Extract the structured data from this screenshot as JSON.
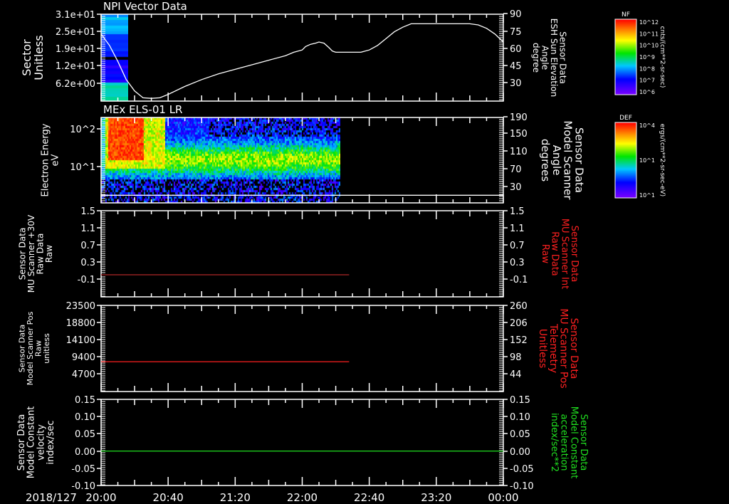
{
  "date_label": "2018/127",
  "x_axis": {
    "tick_labels": [
      "20:00",
      "20:40",
      "21:20",
      "22:00",
      "22:40",
      "23:20",
      "00:00"
    ],
    "range_minutes_from_2000": [
      0,
      240
    ]
  },
  "colors": {
    "white": "#ffffff",
    "red": "#ff2020",
    "green": "#20e020",
    "background": "#000000"
  },
  "chart_data": [
    {
      "type": "line",
      "title": "NPI Vector Data",
      "ylabel_left": [
        "Sector",
        "Unitless"
      ],
      "left_ticks": [
        "3.1e+01",
        "2.5e+01",
        "1.9e+01",
        "1.2e+01",
        "6.2e+00"
      ],
      "ylabel_right": [
        "Sensor Data",
        "ESH Sun Elevation",
        "Angle",
        "degree"
      ],
      "right_ticks": [
        "90",
        "75",
        "60",
        "45",
        "30"
      ],
      "right_ylim": [
        15,
        90
      ],
      "spectrogram_extent_minutes": [
        0,
        15
      ],
      "colorbar": {
        "label": "NF",
        "ticks": [
          "10^12",
          "10^11",
          "10^10",
          "10^9",
          "10^8",
          "10^7",
          "10^6"
        ],
        "units": "cnts/(cm**2-sr-sec)"
      },
      "series": [
        {
          "name": "ESH Sun Elevation Angle",
          "color": "#ffffff",
          "x": [
            0,
            5,
            10,
            15,
            20,
            25,
            30,
            35,
            40,
            50,
            60,
            70,
            80,
            90,
            100,
            110,
            115,
            120,
            122,
            125,
            128,
            130,
            133,
            136,
            138,
            140,
            150,
            155,
            160,
            165,
            170,
            175,
            180,
            185,
            200,
            220,
            225,
            230,
            235,
            240
          ],
          "y": [
            72,
            62,
            48,
            32,
            22,
            16,
            15.5,
            16,
            19,
            26,
            32,
            37,
            41,
            45,
            49,
            53,
            56,
            58,
            61,
            63,
            64,
            65,
            64,
            60,
            57,
            56,
            56,
            56,
            58,
            62,
            68,
            74,
            78,
            81,
            81,
            81,
            80,
            77,
            72,
            65
          ]
        }
      ]
    },
    {
      "type": "heatmap",
      "title": "MEx ELS-01 LR",
      "ylabel_left": [
        "Electron Energy",
        "eV"
      ],
      "left_ticks": [
        "10^2",
        "10^1"
      ],
      "ylabel_right": [
        "Sensor Data",
        "Model Scanner",
        "Angle",
        "degrees"
      ],
      "right_ticks": [
        "190",
        "150",
        "110",
        "70",
        "30"
      ],
      "right_ylim": [
        10,
        190
      ],
      "spectrogram_extent_minutes": [
        0,
        143
      ],
      "colorbar": {
        "label": "DEF",
        "ticks": [
          "10^4",
          "10^1",
          "10^1"
        ],
        "units": "ergs/(cm**2-sr-sec-eV)"
      },
      "series": [
        {
          "name": "Model Scanner Angle",
          "color": "#ffffff",
          "x": [
            0,
            240
          ],
          "y": [
            10,
            10
          ]
        }
      ]
    },
    {
      "type": "line",
      "ylabel_left": [
        "Sensor Data",
        "MU Scanner +30V",
        "Raw Data",
        "Raw"
      ],
      "left_ticks": [
        "1.5",
        "1.1",
        "0.7",
        "0.3",
        "-0.1"
      ],
      "ylabel_right": [
        "Sensor Data",
        "MU Scanner Int",
        "Raw Data",
        "Raw"
      ],
      "right_ticks": [
        "1.5",
        "1.1",
        "0.7",
        "0.3",
        "-0.1"
      ],
      "ylim": [
        -0.5,
        1.5
      ],
      "series": [
        {
          "name": "MU Scanner +30V",
          "color": "#b02828",
          "x": [
            0,
            148
          ],
          "y": [
            0.0,
            0.0
          ]
        }
      ]
    },
    {
      "type": "line",
      "ylabel_left": [
        "Sensor Data",
        "Model Scanner Pos",
        "Raw",
        "unitless"
      ],
      "left_ticks": [
        "23500",
        "18800",
        "14100",
        "9400",
        "4700"
      ],
      "ylim": [
        0,
        23500
      ],
      "ylabel_right": [
        "Sensor Data",
        "MU Scanner Pos",
        "Telemetry",
        "Unitless"
      ],
      "right_ticks": [
        "260",
        "206",
        "152",
        "98",
        "44"
      ],
      "series": [
        {
          "name": "Model Scanner Pos",
          "color": "#ff2020",
          "x": [
            0,
            148
          ],
          "y": [
            8000,
            8000
          ]
        }
      ]
    },
    {
      "type": "line",
      "ylabel_left": [
        "Sensor Data",
        "Model Constant",
        "velocity",
        "index/sec"
      ],
      "left_ticks": [
        "0.15",
        "0.10",
        "0.05",
        "0.00",
        "-0.05",
        "-0.10"
      ],
      "ylim": [
        -0.1,
        0.15
      ],
      "ylabel_right": [
        "Sensor Data",
        "Model Constant",
        "acceleration",
        "index/sec**2"
      ],
      "right_ticks": [
        "0.15",
        "0.10",
        "0.05",
        "0.00",
        "-0.05",
        "-0.10"
      ],
      "series": [
        {
          "name": "Model Constant",
          "color": "#20e020",
          "x": [
            0,
            240
          ],
          "y": [
            0,
            0
          ]
        }
      ]
    }
  ]
}
